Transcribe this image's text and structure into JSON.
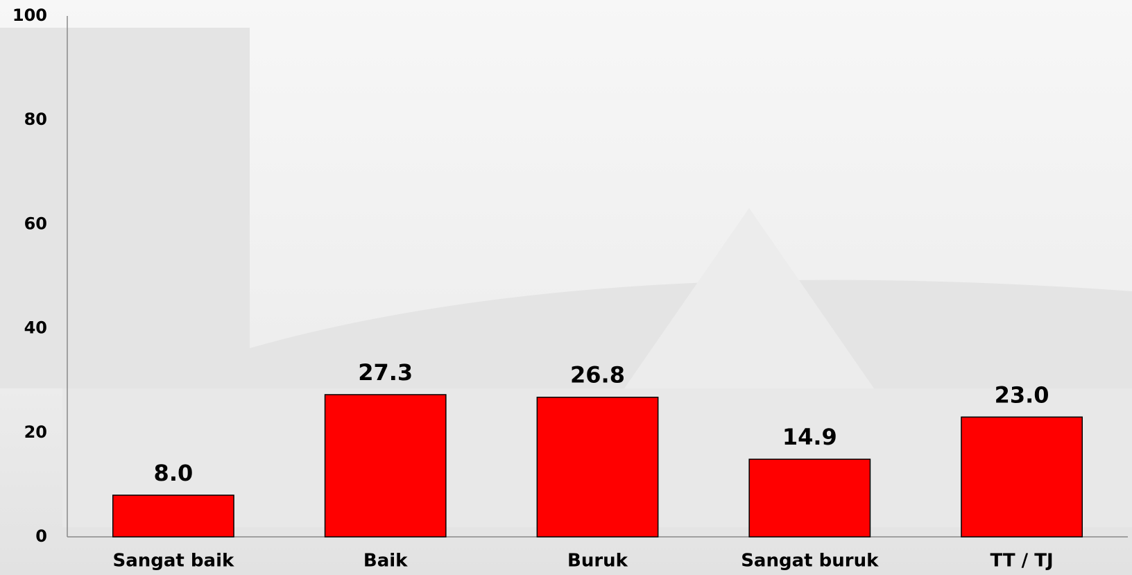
{
  "chart_data": {
    "type": "bar",
    "categories": [
      "Sangat baik",
      "Baik",
      "Buruk",
      "Sangat buruk",
      "TT / TJ"
    ],
    "values": [
      8,
      27.3,
      26.8,
      14.9,
      23
    ],
    "value_labels": [
      "8.0",
      "27.3",
      "26.8",
      "14.9",
      "23.0"
    ],
    "color": "#ff0000",
    "ylim": [
      0,
      100
    ],
    "yticks": [
      0,
      20,
      40,
      60,
      80,
      100
    ],
    "grid": false
  }
}
